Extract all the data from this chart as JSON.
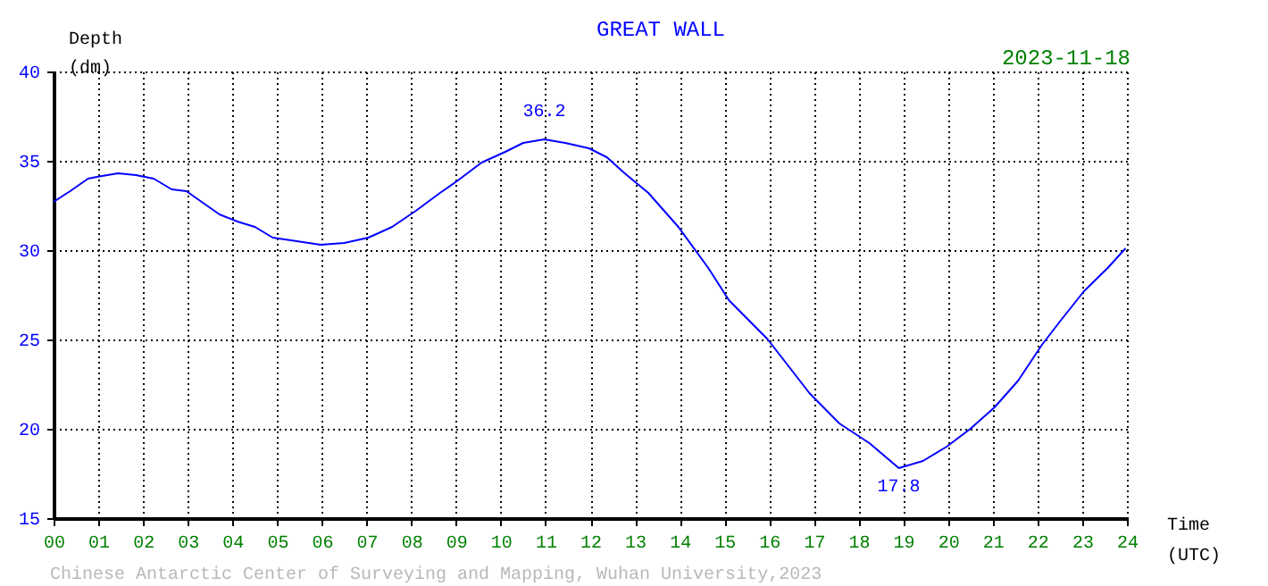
{
  "chart_data": {
    "type": "line",
    "title": "GREAT WALL",
    "subtitle": "2023-11-18",
    "xlabel": "Time\n(UTC)",
    "ylabel": "Depth\n(dm)",
    "x": [
      0,
      0.37,
      0.77,
      0.97,
      1.44,
      1.84,
      2.24,
      2.64,
      2.97,
      3.31,
      3.71,
      4.11,
      4.5,
      4.9,
      5.44,
      5.97,
      6.5,
      7.04,
      7.57,
      8.1,
      8.64,
      9.04,
      9.57,
      10.1,
      10.5,
      10.97,
      11.44,
      11.97,
      12.37,
      12.77,
      13.3,
      13.97,
      14.64,
      15.1,
      15.97,
      16.9,
      17.57,
      18.24,
      18.9,
      19.44,
      19.97,
      20.5,
      21.04,
      21.57,
      22.1,
      22.5,
      23.04,
      23.57,
      23.97
    ],
    "series": [
      {
        "color": "#0000ff",
        "values": [
          32.7,
          33.3,
          34.0,
          34.1,
          34.3,
          34.2,
          34.0,
          33.4,
          33.3,
          32.7,
          32.0,
          31.6,
          31.3,
          30.7,
          30.5,
          30.3,
          30.4,
          30.7,
          31.3,
          32.2,
          33.2,
          33.9,
          34.9,
          35.5,
          36.0,
          36.2,
          36.0,
          35.7,
          35.2,
          34.3,
          33.2,
          31.3,
          29.0,
          27.2,
          25.0,
          22.0,
          20.3,
          19.2,
          17.8,
          18.2,
          19.0,
          20.0,
          21.2,
          22.7,
          24.7,
          26.0,
          27.7,
          29.0,
          30.1
        ]
      }
    ],
    "xlim": [
      0,
      24
    ],
    "ylim": [
      15,
      40
    ],
    "xticks": [
      {
        "value": 0,
        "label": "00"
      },
      {
        "value": 1,
        "label": "01"
      },
      {
        "value": 2,
        "label": "02"
      },
      {
        "value": 3,
        "label": "03"
      },
      {
        "value": 4,
        "label": "04"
      },
      {
        "value": 5,
        "label": "05"
      },
      {
        "value": 6,
        "label": "06"
      },
      {
        "value": 7,
        "label": "07"
      },
      {
        "value": 8,
        "label": "08"
      },
      {
        "value": 9,
        "label": "09"
      },
      10,
      11,
      12,
      13,
      14,
      15,
      16,
      17,
      18,
      19,
      20,
      21,
      22,
      23,
      24
    ],
    "yticks": [
      15,
      20,
      25,
      30,
      35,
      40
    ],
    "grid": true,
    "annotations": [
      {
        "text": "36.2",
        "x": 10.97,
        "y": 36.2
      },
      {
        "text": "17.8",
        "x": 18.9,
        "y": 17.8
      },
      "Chinese Antarctic Center of Surveying and Mapping, Wuhan University,2023"
    ]
  }
}
